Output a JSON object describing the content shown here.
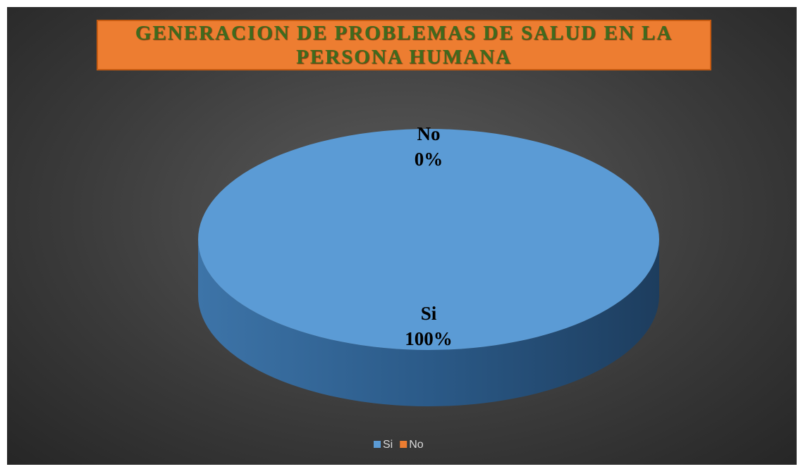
{
  "chart_data": {
    "type": "pie3d",
    "title": "GENERACION DE PROBLEMAS DE SALUD EN LA PERSONA HUMANA",
    "categories": [
      "Si",
      "No"
    ],
    "values": [
      100,
      0
    ],
    "value_labels": [
      "100%",
      "0%"
    ],
    "colors": [
      "#5b9bd5",
      "#ed7d31"
    ],
    "legend": "bottom"
  }
}
